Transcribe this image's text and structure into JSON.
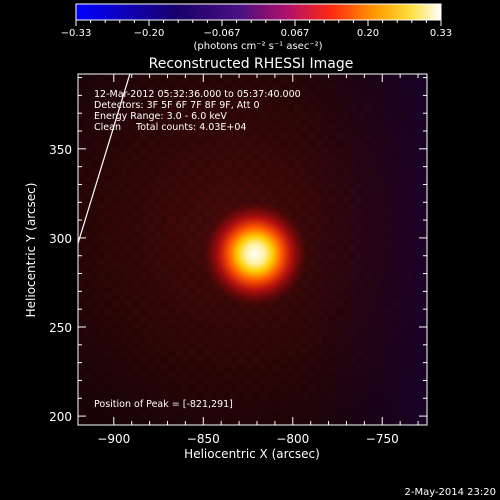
{
  "colorbar": {
    "ticks": [
      "-0.33",
      "-0.20",
      "-0.067",
      "0.067",
      "0.20",
      "0.33"
    ],
    "unit_label": "(photons cm⁻² s⁻¹ asec⁻²)",
    "colors": [
      "#0000ff",
      "#000000",
      "#6a1a7a",
      "#d4004a",
      "#ff5a00",
      "#ffc400",
      "#ffffff"
    ]
  },
  "chart_data": {
    "type": "heatmap",
    "title": "Reconstructed RHESSI Image",
    "xlabel": "Heliocentric X (arcsec)",
    "ylabel": "Heliocentric Y (arcsec)",
    "xlim": [
      -920,
      -725
    ],
    "ylim": [
      195,
      392
    ],
    "xticks": [
      -900,
      -850,
      -800,
      -750
    ],
    "yticks": [
      200,
      250,
      300,
      350
    ],
    "peak": {
      "x": -821,
      "y": 291
    },
    "limb_line": [
      [
        -920,
        297
      ],
      [
        -891,
        392
      ]
    ],
    "info": [
      "12-Mar-2012 05:32:36.000 to 05:37:40.000",
      "Detectors: 3F 5F 6F 7F 8F 9F, Att 0",
      "Energy Range: 3.0 - 6.0 keV",
      "Clean     Total counts: 4.03E+04"
    ],
    "peak_label": "Position of Peak = [-821,291]"
  },
  "footer": {
    "date": "2-May-2014 23:20"
  }
}
